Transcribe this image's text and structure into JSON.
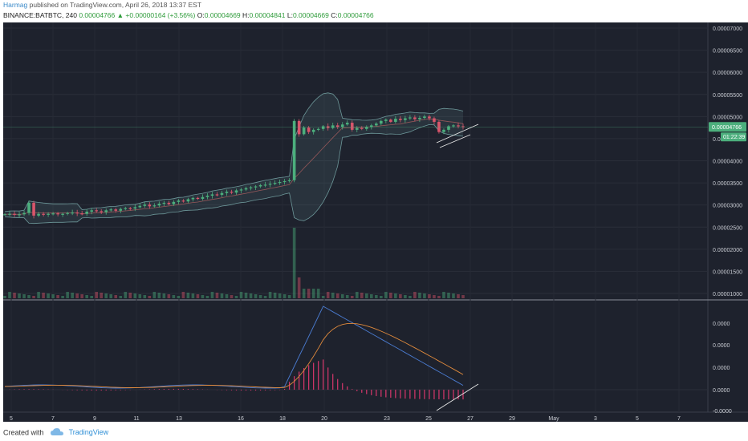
{
  "header": {
    "author": "Harmag",
    "published": "published on TradingView.com, April 26, 2018 13:37 EST",
    "symbol": "BINANCE:BATBTC, 240",
    "last": "0.00004766",
    "change": "+0.00000164 (+3.56%)",
    "o_label": "O:",
    "o_value": "0.00004669",
    "h_label": "H:",
    "h_value": "0.00004841",
    "l_label": "L:",
    "l_value": "0.00004669",
    "c_label": "C:",
    "c_value": "0.00004766"
  },
  "footer": {
    "created_with": "Created with",
    "brand": "TradingView"
  },
  "colors": {
    "background": "#1e222d",
    "up": "#4caf7d",
    "down": "#d9556b",
    "macd_line": "#4a7bd0",
    "signal_line": "#e08a3c",
    "hist": "#d8376c",
    "band": "#7fb3b3"
  },
  "price_axis": {
    "labels": [
      "0.00007000",
      "0.00006500",
      "0.00006000",
      "0.00005500",
      "0.00005000",
      "0.00004500",
      "0.00004000",
      "0.00003500",
      "0.00003000",
      "0.00002500",
      "0.00002000",
      "0.00001500",
      "0.00001000"
    ],
    "values": [
      7000,
      6500,
      6000,
      5500,
      5000,
      4500,
      4000,
      3500,
      3000,
      2500,
      2000,
      1500,
      1000
    ],
    "current_price_tag": "0.00004766",
    "countdown_tag": "01:22:39"
  },
  "macd_axis": {
    "labels": [
      "0.0000",
      "0.0000",
      "0.0000",
      "0.0000",
      "-0.0000"
    ]
  },
  "time_axis": {
    "labels": [
      "5",
      "7",
      "9",
      "11",
      "13",
      "16",
      "18",
      "20",
      "23",
      "25",
      "27",
      "29",
      "May",
      "3",
      "5",
      "7"
    ]
  },
  "chart_data": {
    "type": "candlestick",
    "symbol": "BINANCE:BATBTC",
    "interval": "240",
    "price_unit": "1e-8 BTC",
    "date_ticks": [
      "5",
      "7",
      "9",
      "11",
      "13",
      "16",
      "18",
      "20",
      "23",
      "25",
      "27",
      "29",
      "May",
      "3",
      "5",
      "7"
    ],
    "price_scale": {
      "min": 1000,
      "max": 7000
    },
    "closes": [
      2790,
      2800,
      2780,
      2790,
      2820,
      3050,
      2760,
      2800,
      2790,
      2800,
      2810,
      2790,
      2800,
      2820,
      2830,
      2810,
      2800,
      2850,
      2880,
      2860,
      2840,
      2880,
      2900,
      2870,
      2910,
      2930,
      2920,
      2950,
      2980,
      3010,
      2970,
      2990,
      3030,
      3050,
      3020,
      3070,
      3100,
      3080,
      3130,
      3160,
      3140,
      3180,
      3210,
      3240,
      3230,
      3270,
      3300,
      3280,
      3330,
      3350,
      3380,
      3400,
      3420,
      3450,
      3460,
      3480,
      3500,
      3520,
      3540,
      3560,
      4900,
      4600,
      4750,
      4650,
      4700,
      4720,
      4780,
      4740,
      4800,
      4760,
      4820,
      4860,
      4700,
      4740,
      4720,
      4760,
      4800,
      4840,
      4900,
      4930,
      4880,
      4950,
      4920,
      4960,
      4980,
      4940,
      4970,
      5000,
      4960,
      4880,
      4650,
      4700,
      4780,
      4800,
      4780,
      4766
    ],
    "bollinger": {
      "visible": true
    },
    "volume": {
      "visible": true,
      "spike_index": 60
    },
    "macd": {
      "visible": true,
      "peak_index": 66
    },
    "trendlines": 2
  }
}
